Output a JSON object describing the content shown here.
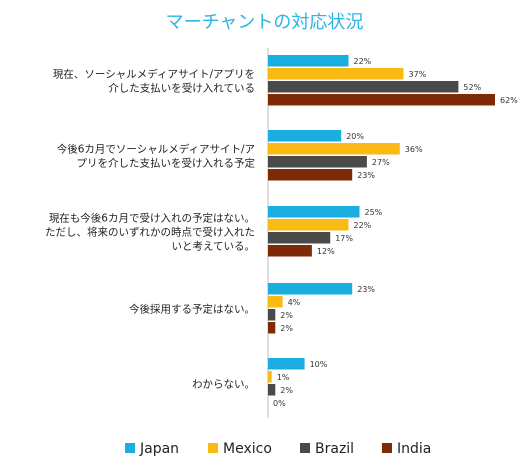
{
  "chart_data": {
    "type": "bar",
    "orientation": "horizontal",
    "title": "マーチャントの対応状況",
    "categories": [
      [
        "現在、ソーシャルメディアサイト/アプリを",
        "介した支払いを受け入れている"
      ],
      [
        "今後6カ月でソーシャルメディアサイト/ア",
        "プリを介した支払いを受け入れる予定"
      ],
      [
        "現在も今後6カ月で受け入れの予定はない。",
        "ただし、将来のいずれかの時点で受け入れた",
        "いと考えている。"
      ],
      [
        "今後採用する予定はない。"
      ],
      [
        "わからない。"
      ]
    ],
    "series": [
      {
        "name": "Japan",
        "color": "#1AAEE0",
        "values": [
          22,
          20,
          25,
          23,
          10
        ]
      },
      {
        "name": "Mexico",
        "color": "#F9BA14",
        "values": [
          37,
          36,
          22,
          4,
          1
        ]
      },
      {
        "name": "Brazil",
        "color": "#4A4A4A",
        "values": [
          52,
          27,
          17,
          2,
          2
        ]
      },
      {
        "name": "India",
        "color": "#7F2A06",
        "values": [
          62,
          23,
          12,
          2,
          0
        ]
      }
    ],
    "value_suffix": "%",
    "xlim": [
      0,
      62
    ],
    "grid": false,
    "legend_position": "bottom",
    "title_color": "#2DB3E6"
  }
}
